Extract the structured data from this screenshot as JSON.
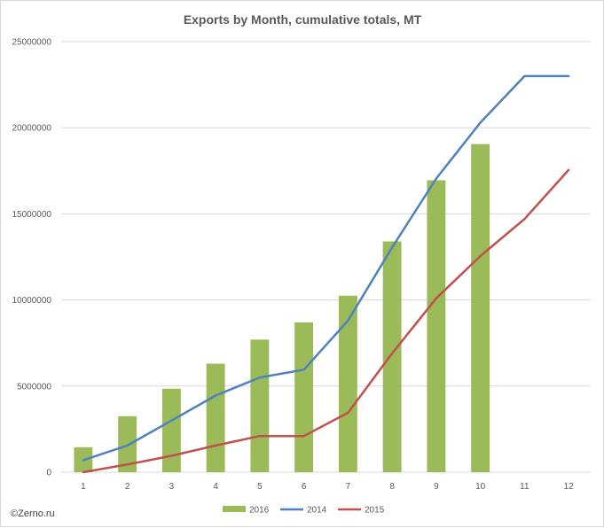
{
  "chart_data": {
    "type": "bar",
    "title": "Exports by Month, cumulative totals, MT",
    "xlabel": "",
    "ylabel": "",
    "categories": [
      "1",
      "2",
      "3",
      "4",
      "5",
      "6",
      "7",
      "8",
      "9",
      "10",
      "11",
      "12"
    ],
    "ylim": [
      0,
      25000000
    ],
    "yticks": [
      "0",
      "5000000",
      "10000000",
      "15000000",
      "20000000",
      "25000000"
    ],
    "ytick_values": [
      0,
      5000000,
      10000000,
      15000000,
      20000000,
      25000000
    ],
    "grid": true,
    "legend_position": "bottom",
    "series": [
      {
        "name": "2016",
        "kind": "bar",
        "color": "#9bbb59",
        "values": [
          1450000,
          3250000,
          4850000,
          6300000,
          7700000,
          8700000,
          10250000,
          13400000,
          16950000,
          19050000,
          null,
          null
        ]
      },
      {
        "name": "2014",
        "kind": "line",
        "color": "#4f81bd",
        "values": [
          700000,
          1550000,
          3000000,
          4450000,
          5500000,
          5950000,
          8800000,
          13050000,
          17050000,
          20300000,
          23000000,
          23000000
        ]
      },
      {
        "name": "2015",
        "kind": "line",
        "color": "#c0504d",
        "values": [
          0,
          450000,
          950000,
          1550000,
          2100000,
          2100000,
          3450000,
          6900000,
          10100000,
          12550000,
          14700000,
          17550000
        ]
      }
    ]
  },
  "watermark": "©Zerno.ru"
}
